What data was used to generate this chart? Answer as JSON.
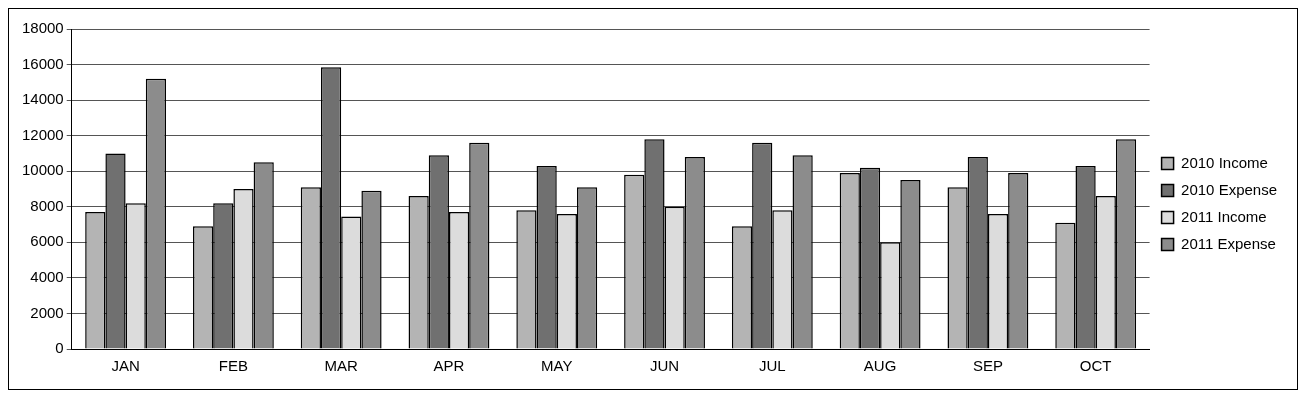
{
  "chart_data": {
    "type": "bar",
    "categories": [
      "JAN",
      "FEB",
      "MAR",
      "APR",
      "MAY",
      "JUN",
      "JUL",
      "AUG",
      "SEP",
      "OCT"
    ],
    "series": [
      {
        "name": "2010 Income",
        "color": "#b4b4b4",
        "values": [
          7700,
          6900,
          9100,
          8600,
          7800,
          9800,
          6900,
          9900,
          9100,
          7100
        ]
      },
      {
        "name": "2010 Expense",
        "color": "#707070",
        "values": [
          11000,
          8200,
          15850,
          10900,
          10300,
          11800,
          11600,
          10200,
          10800,
          10300
        ]
      },
      {
        "name": "2011 Income",
        "color": "#dcdcdc",
        "values": [
          8200,
          9000,
          7450,
          7700,
          7600,
          8000,
          7800,
          6000,
          7600,
          8600
        ]
      },
      {
        "name": "2011 Expense",
        "color": "#8c8c8c",
        "values": [
          15200,
          10500,
          8900,
          11600,
          9100,
          10800,
          10900,
          9500,
          9900,
          11800
        ]
      }
    ],
    "ylim": [
      0,
      18000
    ],
    "yticks": [
      0,
      2000,
      4000,
      6000,
      8000,
      10000,
      12000,
      14000,
      16000,
      18000
    ],
    "grid": "y",
    "legend": "right"
  }
}
